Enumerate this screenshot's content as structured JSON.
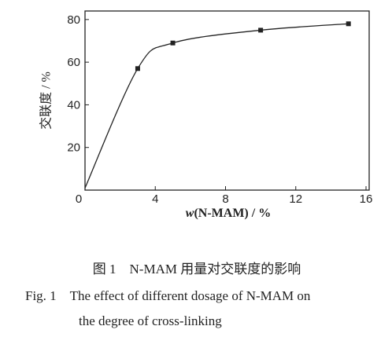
{
  "chart_data": {
    "type": "line",
    "x": [
      0,
      3,
      5,
      10,
      15
    ],
    "series": [
      {
        "color": "#222222",
        "values": [
          1,
          57,
          69,
          75,
          78
        ]
      }
    ],
    "xlim": [
      0,
      16
    ],
    "xticks": [
      0,
      4,
      8,
      12,
      16
    ],
    "ylim": [
      0,
      84
    ],
    "yticks": [
      20,
      40,
      60,
      80
    ],
    "x_label_var": "w",
    "x_label_rest": "(N-MAM) / %",
    "y_label": "交联度 / %",
    "caption_cn": "图 1　N-MAM 用量对交联度的影响",
    "caption_en_1": "Fig. 1　The effect of different dosage of N-MAM on",
    "caption_en_2": "the degree of cross-linking"
  }
}
